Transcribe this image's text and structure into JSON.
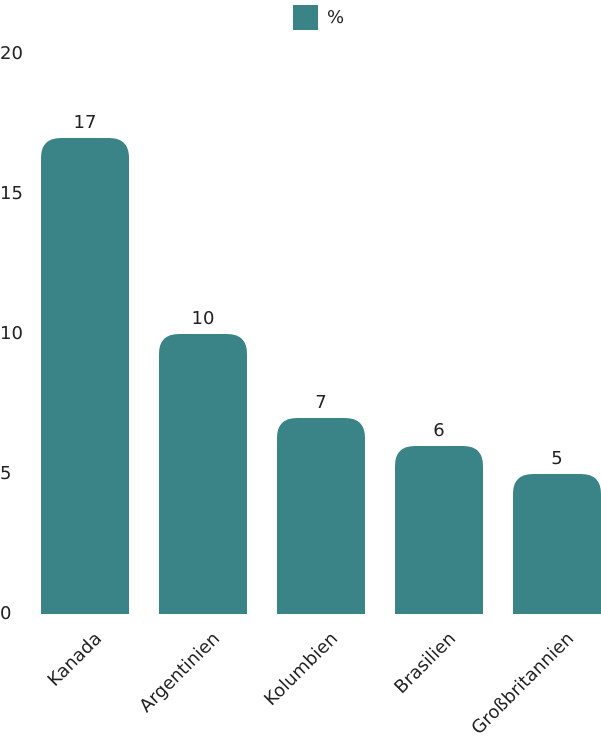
{
  "chart_data": {
    "type": "bar",
    "categories": [
      "Kanada",
      "Argentinien",
      "Kolumbien",
      "Brasilien",
      "Großbritannien"
    ],
    "series": [
      {
        "name": "%",
        "color": "#3a8488",
        "values": [
          17,
          10,
          7,
          6,
          5
        ]
      }
    ],
    "ylim": [
      0,
      20
    ],
    "yticks": [
      0,
      5,
      10,
      15,
      20
    ],
    "grid": false,
    "legend": "top"
  }
}
